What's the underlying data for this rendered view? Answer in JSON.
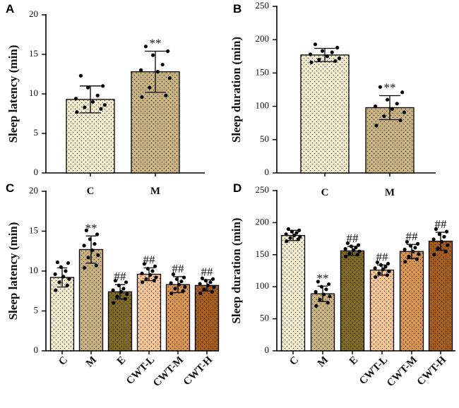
{
  "colors": {
    "C": "#f5edcf",
    "M": "#c8b27f",
    "E": "#7d6a25",
    "CWT-L": "#f8c594",
    "CWT-M": "#d8954f",
    "CWT-H": "#a55d1e"
  },
  "chart_data": [
    {
      "type": "bar",
      "panel": "A",
      "categories": [
        "C",
        "M"
      ],
      "values": [
        9.3,
        12.8
      ],
      "errors": [
        1.7,
        2.6
      ],
      "points": [
        [
          7.7,
          8.1,
          8.3,
          8.6,
          9.0,
          9.4,
          9.8,
          10.8,
          11.0,
          12.3
        ],
        [
          9.6,
          9.8,
          10.8,
          12.0,
          12.8,
          13.0,
          13.7,
          14.9,
          15.4,
          16.0
        ]
      ],
      "annotations": [
        "",
        "**"
      ],
      "ylabel": "Sleep latency (min)",
      "ylim": [
        0,
        20
      ],
      "yticks": [
        0,
        5,
        10,
        15,
        20
      ]
    },
    {
      "type": "bar",
      "panel": "B",
      "categories": [
        "C",
        "M"
      ],
      "values": [
        177,
        98
      ],
      "errors": [
        10,
        18
      ],
      "points": [
        [
          166,
          168,
          170,
          172,
          175,
          178,
          181,
          183,
          188,
          193
        ],
        [
          71,
          79,
          85,
          91,
          96,
          100,
          104,
          110,
          121,
          129
        ]
      ],
      "annotations": [
        "",
        "**"
      ],
      "ylabel": "Sleep duration (min)",
      "ylim": [
        0,
        250
      ],
      "yticks": [
        0,
        50,
        100,
        150,
        200,
        250
      ]
    },
    {
      "type": "bar",
      "panel": "C",
      "categories": [
        "C",
        "M",
        "E",
        "CWT-L",
        "CWT-M",
        "CWT-H"
      ],
      "values": [
        9.2,
        12.7,
        7.4,
        9.6,
        8.3,
        8.2
      ],
      "errors": [
        1.2,
        1.7,
        0.9,
        0.8,
        1.0,
        0.7
      ],
      "points": [
        [
          7.6,
          8.2,
          8.6,
          9.0,
          9.3,
          9.6,
          10.0,
          10.5,
          11.0,
          11.1
        ],
        [
          10.4,
          10.7,
          11.7,
          12.0,
          12.6,
          13.2,
          13.4,
          14.0,
          14.6,
          15.1
        ],
        [
          6.0,
          6.5,
          6.8,
          7.1,
          7.4,
          7.6,
          7.8,
          8.2,
          8.6,
          8.8
        ],
        [
          8.6,
          8.8,
          9.0,
          9.2,
          9.5,
          9.7,
          10.0,
          10.3,
          10.6,
          10.9
        ],
        [
          7.2,
          7.5,
          7.8,
          8.0,
          8.3,
          8.5,
          8.7,
          9.0,
          9.2,
          9.6
        ],
        [
          7.2,
          7.4,
          7.7,
          8.0,
          8.2,
          8.4,
          8.6,
          8.8,
          9.0,
          9.1
        ]
      ],
      "annotations": [
        "",
        "**",
        "##",
        "##",
        "##",
        "##"
      ],
      "ylabel": "Sleep latency (min)",
      "ylim": [
        0,
        20
      ],
      "yticks": [
        0,
        5,
        10,
        15,
        20
      ]
    },
    {
      "type": "bar",
      "panel": "D",
      "categories": [
        "C",
        "M",
        "E",
        "CWT-L",
        "CWT-M",
        "CWT-H"
      ],
      "values": [
        180,
        89,
        156,
        126,
        155,
        171
      ],
      "errors": [
        8,
        12,
        7,
        8,
        11,
        14
      ],
      "points": [
        [
          171,
          174,
          176,
          178,
          180,
          182,
          184,
          186,
          188,
          190
        ],
        [
          70,
          75,
          80,
          85,
          88,
          92,
          96,
          100,
          104,
          108
        ],
        [
          147,
          150,
          152,
          155,
          157,
          159,
          161,
          163,
          165,
          168
        ],
        [
          115,
          118,
          121,
          124,
          127,
          129,
          131,
          134,
          136,
          138
        ],
        [
          139,
          143,
          147,
          151,
          155,
          158,
          161,
          164,
          167,
          170
        ],
        [
          150,
          155,
          160,
          165,
          170,
          174,
          178,
          182,
          186,
          190
        ]
      ],
      "annotations": [
        "",
        "**",
        "##",
        "##",
        "##",
        "##"
      ],
      "ylabel": "Sleep duration (min)",
      "ylim": [
        0,
        250
      ],
      "yticks": [
        0,
        50,
        100,
        150,
        200,
        250
      ]
    }
  ]
}
